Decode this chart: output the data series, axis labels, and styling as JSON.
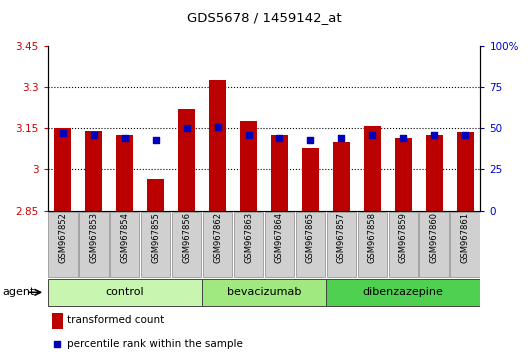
{
  "title": "GDS5678 / 1459142_at",
  "samples": [
    "GSM967852",
    "GSM967853",
    "GSM967854",
    "GSM967855",
    "GSM967856",
    "GSM967862",
    "GSM967863",
    "GSM967864",
    "GSM967865",
    "GSM967857",
    "GSM967858",
    "GSM967859",
    "GSM967860",
    "GSM967861"
  ],
  "transformed_count": [
    3.15,
    3.14,
    3.125,
    2.965,
    3.22,
    3.325,
    3.175,
    3.125,
    3.08,
    3.1,
    3.16,
    3.115,
    3.125,
    3.135
  ],
  "percentile_rank": [
    47,
    46,
    44,
    43,
    50,
    51,
    46,
    44,
    43,
    44,
    46,
    44,
    46,
    46
  ],
  "groups": [
    {
      "name": "control",
      "start": 0,
      "end": 5,
      "color": "#c8f5b0"
    },
    {
      "name": "bevacizumab",
      "start": 5,
      "end": 9,
      "color": "#a0e880"
    },
    {
      "name": "dibenzazepine",
      "start": 9,
      "end": 14,
      "color": "#50d050"
    }
  ],
  "ylim_left": [
    2.85,
    3.45
  ],
  "ylim_right": [
    0,
    100
  ],
  "yticks_left": [
    2.85,
    3.0,
    3.15,
    3.3,
    3.45
  ],
  "ytick_labels_left": [
    "2.85",
    "3",
    "3.15",
    "3.3",
    "3.45"
  ],
  "yticks_right": [
    0,
    25,
    50,
    75,
    100
  ],
  "ytick_labels_right": [
    "0",
    "25",
    "50",
    "75",
    "100%"
  ],
  "bar_color": "#bb0000",
  "dot_color": "#0000bb",
  "bar_width": 0.55,
  "bar_bottom": 2.85,
  "grid_color": "#000000",
  "grid_yticks": [
    3.0,
    3.15,
    3.3
  ],
  "agent_label": "agent",
  "legend_bar_label": "transformed count",
  "legend_dot_label": "percentile rank within the sample",
  "sample_bg_color": "#d0d0d0",
  "plot_bg_color": "#ffffff"
}
